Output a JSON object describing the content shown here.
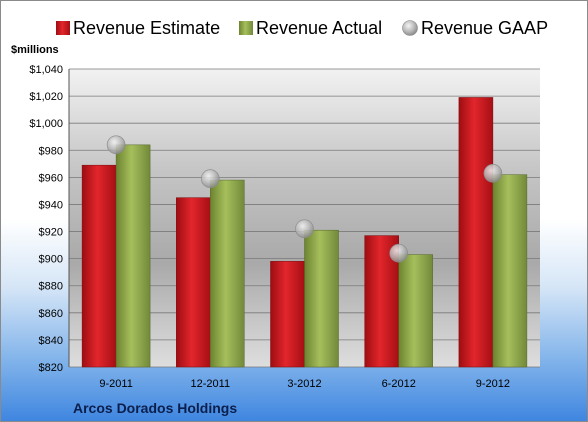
{
  "chart_data": {
    "type": "bar",
    "unit_label": "$millions",
    "company": "Arcos Dorados Holdings",
    "categories": [
      "9-2011",
      "12-2011",
      "3-2012",
      "6-2012",
      "9-2012"
    ],
    "ylim": [
      820,
      1040
    ],
    "y_ticks": [
      820,
      840,
      860,
      880,
      900,
      920,
      940,
      960,
      980,
      1000,
      1020,
      1040
    ],
    "y_tick_labels": [
      "$820",
      "$840",
      "$860",
      "$880",
      "$900",
      "$920",
      "$940",
      "$960",
      "$980",
      "$1,000",
      "$1,020",
      "$1,040"
    ],
    "grid": true,
    "legend_position": "top",
    "series": [
      {
        "name": "Revenue Estimate",
        "kind": "bar",
        "color": "#c8161d",
        "values": [
          969,
          945,
          898,
          917,
          1019
        ]
      },
      {
        "name": "Revenue Actual",
        "kind": "bar",
        "color": "#8fa84a",
        "values": [
          984,
          958,
          921,
          903,
          962
        ]
      },
      {
        "name": "Revenue GAAP",
        "kind": "marker",
        "color": "#b0b0b0",
        "values": [
          984,
          959,
          922,
          904,
          963
        ]
      }
    ]
  }
}
